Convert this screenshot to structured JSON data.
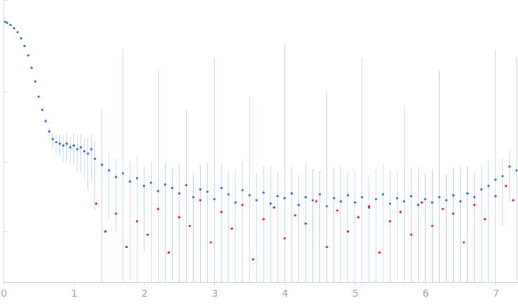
{
  "chart_data": {
    "type": "scatter",
    "log": "y",
    "tick_labels": "x",
    "marker": "circle",
    "xlim": [
      0,
      7.32
    ],
    "xticks": [
      0,
      1,
      2,
      3,
      4,
      5,
      6,
      7
    ],
    "ylim": [
      0.00019,
      2.05
    ],
    "yticks": [
      0.001,
      0.01,
      0.1
    ],
    "series": [
      {
        "color": "#3a6fc8",
        "x": [
          0.02,
          0.05,
          0.1,
          0.15,
          0.2,
          0.25,
          0.3,
          0.35,
          0.4,
          0.45,
          0.5,
          0.55,
          0.6,
          0.65,
          0.7,
          0.75,
          0.8,
          0.85,
          0.9,
          0.95,
          1.0,
          1.05,
          1.1,
          1.15,
          1.2,
          1.25,
          1.3,
          1.4,
          1.5,
          1.6,
          1.7,
          1.8,
          1.9,
          2.0,
          2.1,
          2.2,
          2.3,
          2.4,
          2.5,
          2.6,
          2.7,
          2.8,
          2.9,
          3.0,
          3.1,
          3.2,
          3.3,
          3.4,
          3.5,
          3.6,
          3.7,
          3.8,
          3.9,
          4.0,
          4.1,
          4.2,
          4.3,
          4.4,
          4.5,
          4.6,
          4.7,
          4.8,
          4.9,
          5.0,
          5.1,
          5.2,
          5.3,
          5.4,
          5.5,
          5.6,
          5.7,
          5.8,
          5.9,
          6.0,
          6.1,
          6.2,
          6.3,
          6.4,
          6.5,
          6.6,
          6.7,
          6.8,
          6.9,
          7.0,
          7.1,
          7.2,
          7.3
        ],
        "values": [
          1.0,
          0.97,
          0.9,
          0.81,
          0.71,
          0.58,
          0.45,
          0.33,
          0.22,
          0.14,
          0.085,
          0.055,
          0.038,
          0.027,
          0.021,
          0.019,
          0.018,
          0.017,
          0.018,
          0.016,
          0.017,
          0.015,
          0.016,
          0.014,
          0.013,
          0.015,
          0.011,
          0.009,
          0.0075,
          0.006,
          0.0068,
          0.0052,
          0.0058,
          0.0045,
          0.005,
          0.0038,
          0.0047,
          0.0042,
          0.0035,
          0.0046,
          0.0031,
          0.004,
          0.0037,
          0.0029,
          0.0042,
          0.0034,
          0.0026,
          0.0039,
          0.0033,
          0.0028,
          0.0036,
          0.0025,
          0.0032,
          0.003,
          0.0035,
          0.0024,
          0.0031,
          0.0028,
          0.0034,
          0.0023,
          0.003,
          0.0027,
          0.0033,
          0.0026,
          0.0031,
          0.0022,
          0.0029,
          0.0034,
          0.0025,
          0.003,
          0.0027,
          0.0032,
          0.0024,
          0.0029,
          0.0026,
          0.0031,
          0.0028,
          0.0033,
          0.0027,
          0.0035,
          0.0031,
          0.004,
          0.0045,
          0.0055,
          0.0062,
          0.0085,
          0.0075
        ],
        "errors": [
          0.02,
          0.02,
          0.02,
          0.02,
          0.02,
          0.02,
          0.015,
          0.01,
          0.008,
          0.006,
          0.005,
          0.004,
          0.004,
          0.004,
          0.005,
          0.006,
          0.006,
          0.007,
          0.008,
          0.007,
          0.008,
          0.008,
          0.009,
          0.008,
          0.009,
          0.01,
          0.009,
          0.05,
          0.006,
          0.005,
          0.4,
          0.005,
          0.006,
          0.004,
          0.005,
          0.2,
          0.005,
          0.004,
          0.006,
          0.05,
          0.004,
          0.005,
          0.006,
          0.3,
          0.005,
          0.004,
          0.005,
          0.006,
          0.08,
          0.004,
          0.005,
          0.006,
          0.004,
          0.5,
          0.005,
          0.004,
          0.006,
          0.005,
          0.004,
          0.1,
          0.005,
          0.006,
          0.004,
          0.005,
          0.3,
          0.004,
          0.005,
          0.006,
          0.005,
          0.004,
          0.06,
          0.005,
          0.006,
          0.004,
          0.005,
          0.2,
          0.004,
          0.005,
          0.006,
          0.005,
          0.004,
          0.005,
          0.006,
          0.4,
          0.005,
          0.006,
          0.3
        ]
      },
      {
        "color": "#e8262a",
        "x": [
          1.32,
          1.45,
          1.6,
          1.75,
          1.9,
          2.05,
          2.2,
          2.35,
          2.5,
          2.65,
          2.8,
          2.95,
          3.1,
          3.25,
          3.4,
          3.55,
          3.7,
          3.85,
          4.0,
          4.15,
          4.3,
          4.45,
          4.6,
          4.75,
          4.9,
          5.05,
          5.2,
          5.35,
          5.5,
          5.65,
          5.8,
          5.95,
          6.1,
          6.25,
          6.4,
          6.55,
          6.7,
          6.85,
          7.0,
          7.15,
          7.25
        ],
        "values": [
          0.0025,
          0.001,
          0.0018,
          0.0006,
          0.0014,
          0.0009,
          0.0021,
          0.0005,
          0.0016,
          0.0012,
          0.0028,
          0.0007,
          0.0019,
          0.0011,
          0.0024,
          0.0004,
          0.0015,
          0.0022,
          0.0008,
          0.0017,
          0.0013,
          0.0027,
          0.0006,
          0.002,
          0.001,
          0.0016,
          0.0023,
          0.0005,
          0.0014,
          0.0019,
          0.0009,
          0.0026,
          0.0012,
          0.0021,
          0.0018,
          0.0007,
          0.0024,
          0.0015,
          0.0032,
          0.0045,
          0.0028
        ]
      }
    ]
  }
}
